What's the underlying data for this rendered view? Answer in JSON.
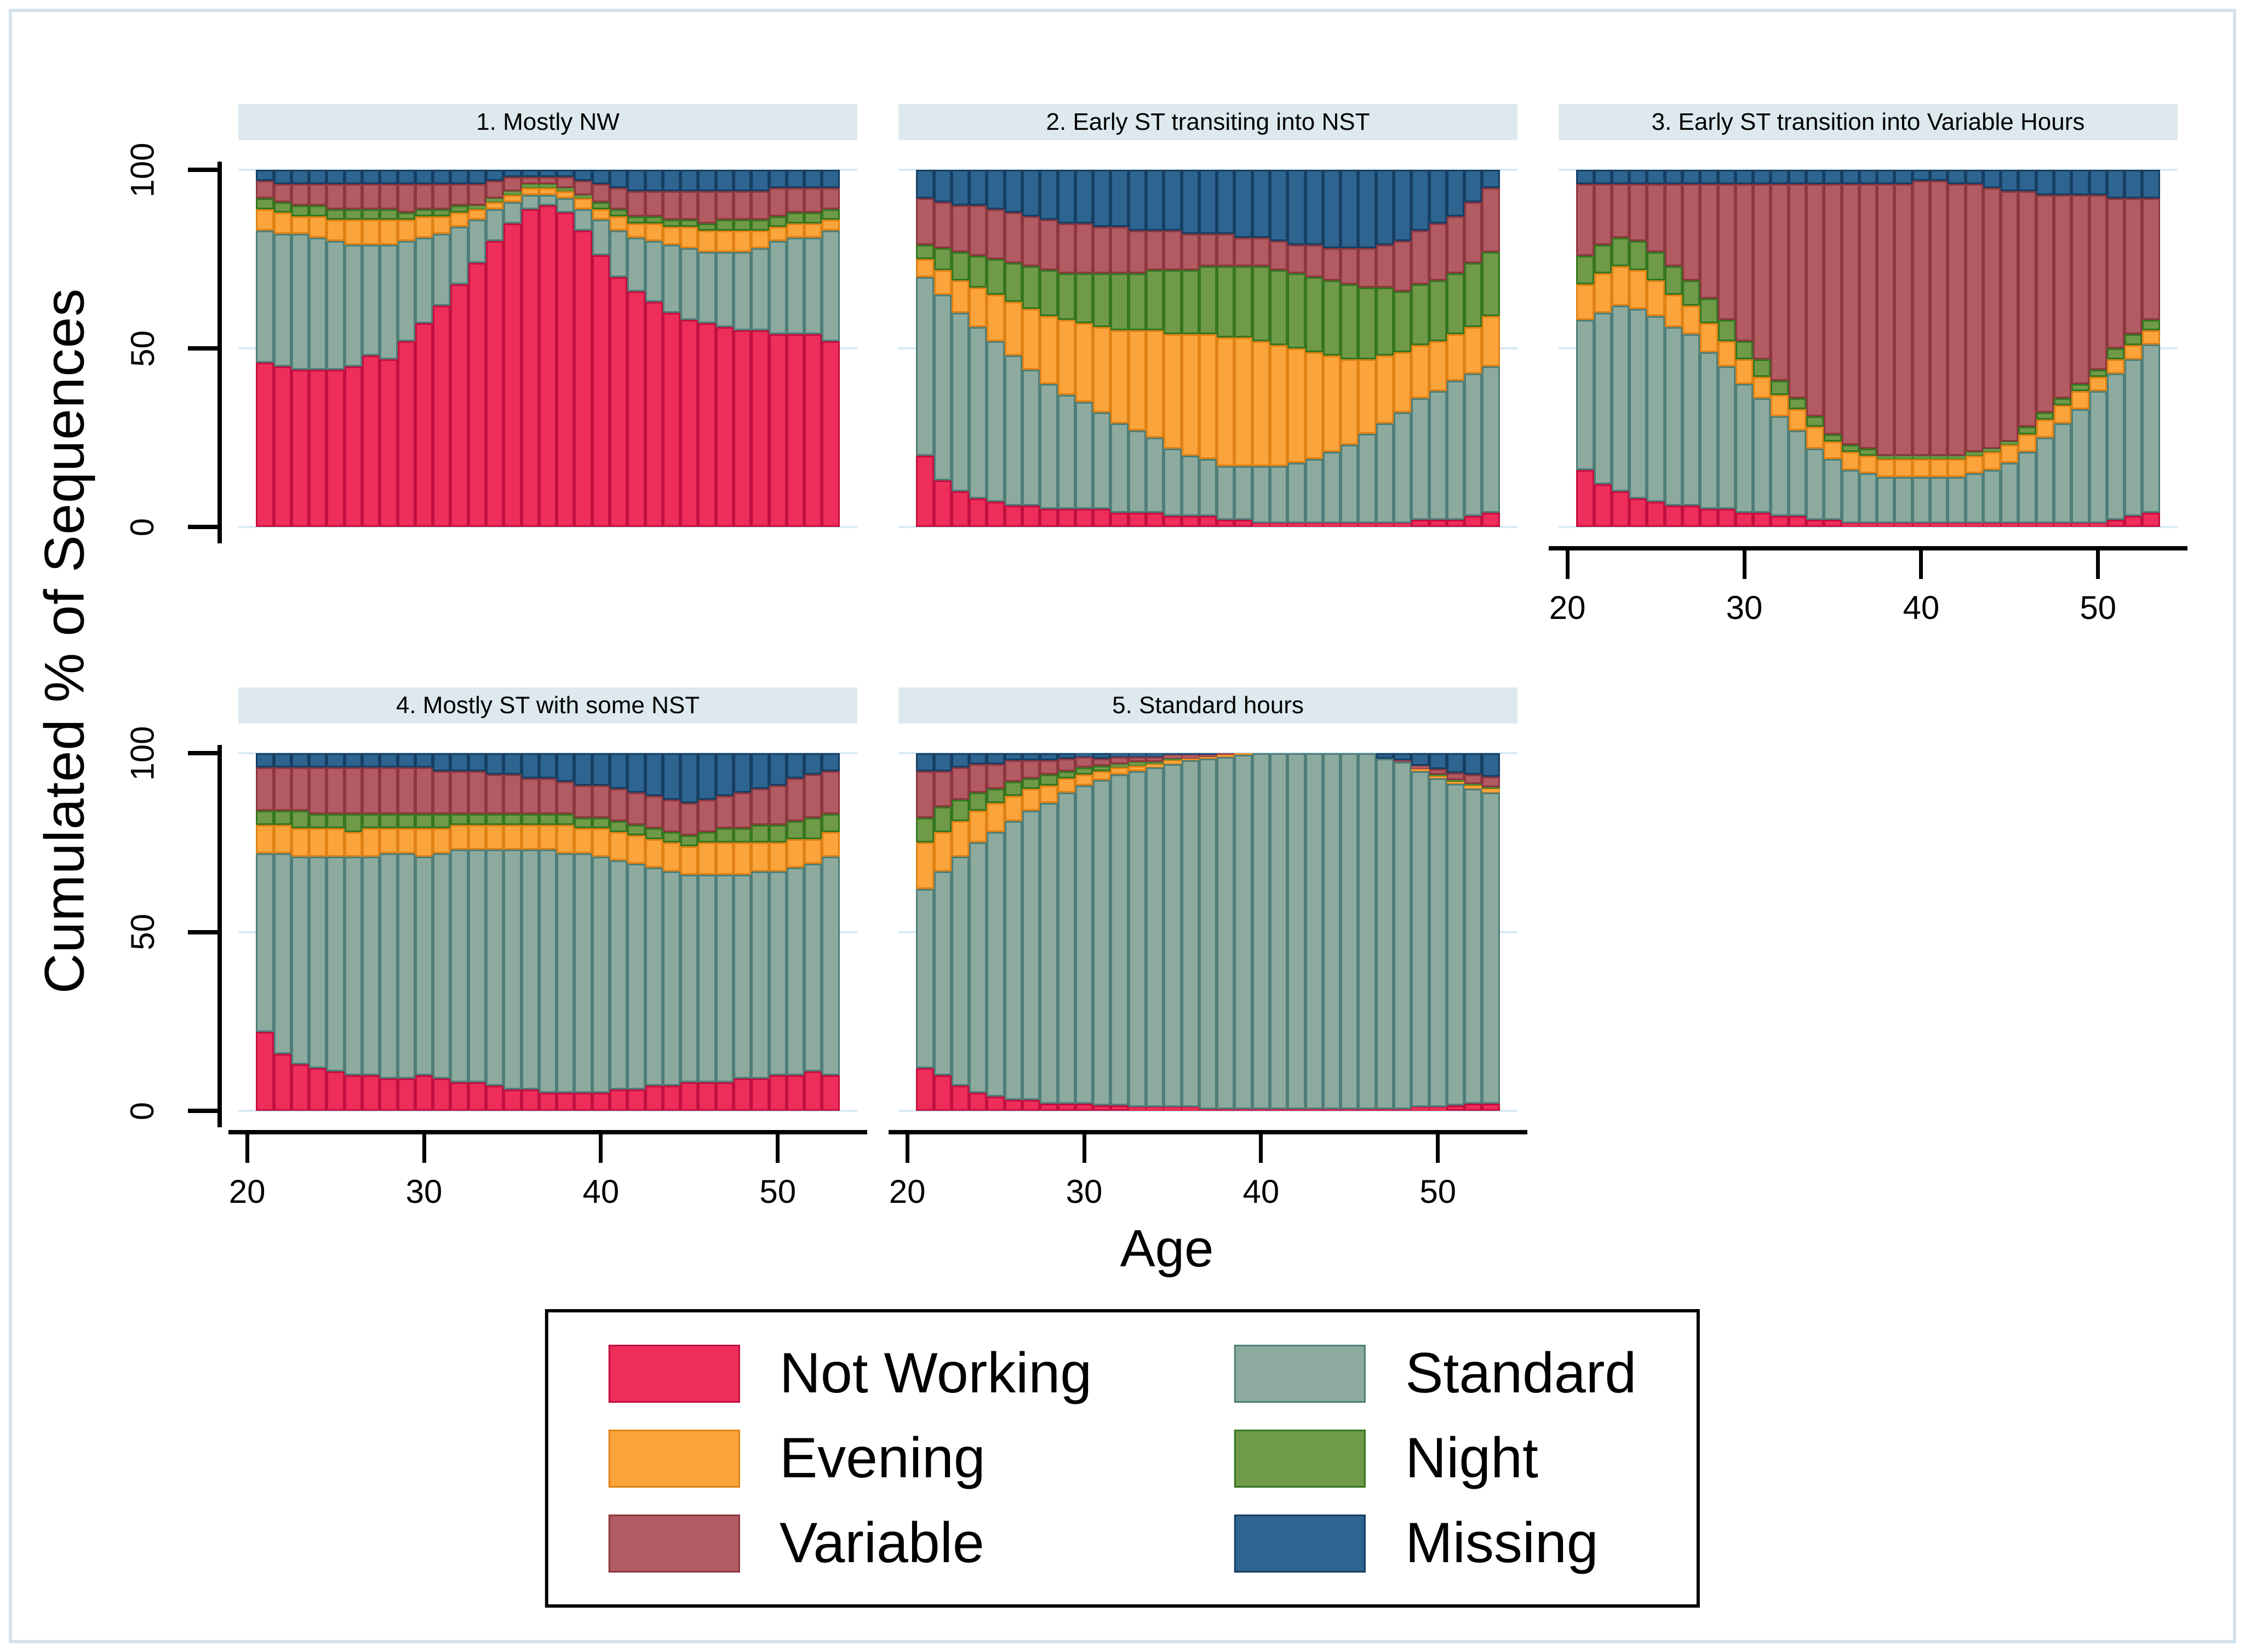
{
  "figure": {
    "background": "#ffffff",
    "frame_color": "#d3e3ee",
    "header_fill": "#dde9ef",
    "gridline_color": "#d9eaf3",
    "axis_color": "#000000",
    "legend_border_color": "#000000"
  },
  "chart_data": {
    "type": "bar",
    "stacked": true,
    "unit": "%",
    "ylabel": "Cumulated % of Sequences",
    "xlabel": "Age",
    "ylim": [
      0,
      100
    ],
    "yticks": [
      0,
      50,
      100
    ],
    "xticks": [
      20,
      30,
      40,
      50
    ],
    "xlim": [
      19.5,
      54.5
    ],
    "grid": true,
    "legend_position": "bottom",
    "ages": [
      21,
      22,
      23,
      24,
      25,
      26,
      27,
      28,
      29,
      30,
      31,
      32,
      33,
      34,
      35,
      36,
      37,
      38,
      39,
      40,
      41,
      42,
      43,
      44,
      45,
      46,
      47,
      48,
      49,
      50,
      51,
      52,
      53
    ],
    "stack_order": [
      "Not Working",
      "Standard",
      "Evening",
      "Night",
      "Variable",
      "Missing"
    ],
    "legend_order": [
      "Not Working",
      "Evening",
      "Variable",
      "Standard",
      "Night",
      "Missing"
    ],
    "series_colors": {
      "Not Working": {
        "fill": "#ee2d5a",
        "stroke": "#c11040"
      },
      "Standard": {
        "fill": "#8cab9e",
        "stroke": "#4f7e79"
      },
      "Evening": {
        "fill": "#fca43c",
        "stroke": "#e08214"
      },
      "Night": {
        "fill": "#6f9a48",
        "stroke": "#35761f"
      },
      "Variable": {
        "fill": "#b25b62",
        "stroke": "#8f3740"
      },
      "Missing": {
        "fill": "#2e6490",
        "stroke": "#163f63"
      }
    },
    "panels": [
      {
        "title": "1. Mostly NW",
        "values": {
          "Not Working": [
            46,
            45,
            44,
            44,
            44,
            45,
            48,
            47,
            52,
            57,
            62,
            68,
            74,
            80,
            85,
            89,
            90,
            88,
            83,
            76,
            70,
            66,
            63,
            60,
            58,
            57,
            56,
            55,
            55,
            54,
            54,
            54,
            52
          ],
          "Standard": [
            37,
            37,
            38,
            37,
            36,
            34,
            31,
            32,
            28,
            24,
            20,
            16,
            12,
            9,
            6,
            4,
            3,
            4,
            6,
            10,
            13,
            15,
            17,
            19,
            20,
            20,
            21,
            22,
            23,
            26,
            27,
            27,
            31
          ],
          "Evening": [
            6,
            6,
            5,
            6,
            6,
            7,
            7,
            7,
            6,
            6,
            5,
            4,
            3,
            2,
            2,
            2,
            2,
            2,
            3,
            3,
            4,
            4,
            5,
            5,
            6,
            6,
            6,
            6,
            5,
            4,
            4,
            4,
            3
          ],
          "Night": [
            3,
            3,
            3,
            3,
            3,
            3,
            3,
            3,
            2,
            2,
            2,
            2,
            1,
            1,
            1,
            1,
            1,
            1,
            1,
            2,
            2,
            2,
            2,
            2,
            2,
            2,
            3,
            3,
            3,
            3,
            3,
            3,
            3
          ],
          "Variable": [
            5,
            5,
            6,
            6,
            7,
            7,
            7,
            7,
            8,
            7,
            7,
            6,
            6,
            5,
            4,
            2,
            2,
            3,
            4,
            5,
            6,
            7,
            7,
            8,
            8,
            9,
            8,
            8,
            8,
            8,
            7,
            7,
            6
          ],
          "Missing": [
            3,
            4,
            4,
            4,
            4,
            4,
            4,
            4,
            4,
            4,
            4,
            4,
            4,
            3,
            2,
            2,
            2,
            2,
            3,
            4,
            5,
            6,
            6,
            6,
            6,
            6,
            6,
            6,
            6,
            5,
            5,
            5,
            5
          ]
        }
      },
      {
        "title": "2. Early ST transiting into NST",
        "values": {
          "Not Working": [
            20,
            13,
            10,
            8,
            7,
            6,
            6,
            5,
            5,
            5,
            5,
            4,
            4,
            4,
            3,
            3,
            3,
            2,
            2,
            1,
            1,
            1,
            1,
            1,
            1,
            1,
            1,
            1,
            2,
            2,
            2,
            3,
            4
          ],
          "Standard": [
            50,
            52,
            50,
            48,
            45,
            42,
            38,
            35,
            32,
            30,
            27,
            25,
            23,
            21,
            19,
            17,
            16,
            15,
            15,
            16,
            16,
            17,
            18,
            20,
            22,
            25,
            28,
            31,
            34,
            36,
            39,
            40,
            41
          ],
          "Evening": [
            5,
            7,
            9,
            11,
            13,
            15,
            17,
            19,
            21,
            22,
            24,
            26,
            28,
            30,
            32,
            34,
            35,
            36,
            36,
            35,
            34,
            32,
            30,
            27,
            24,
            21,
            19,
            17,
            15,
            14,
            13,
            13,
            14
          ],
          "Night": [
            4,
            6,
            8,
            9,
            10,
            11,
            12,
            13,
            13,
            14,
            15,
            16,
            16,
            17,
            18,
            18,
            19,
            20,
            20,
            21,
            21,
            21,
            21,
            21,
            21,
            20,
            19,
            17,
            17,
            17,
            17,
            18,
            18
          ],
          "Variable": [
            13,
            13,
            13,
            14,
            14,
            14,
            14,
            14,
            14,
            14,
            13,
            13,
            12,
            11,
            11,
            10,
            9,
            9,
            8,
            8,
            8,
            8,
            9,
            9,
            10,
            11,
            12,
            14,
            15,
            16,
            16,
            17,
            18
          ],
          "Missing": [
            8,
            9,
            10,
            10,
            11,
            12,
            13,
            14,
            15,
            15,
            16,
            16,
            17,
            17,
            17,
            18,
            18,
            18,
            19,
            19,
            20,
            21,
            21,
            22,
            22,
            22,
            21,
            20,
            17,
            15,
            13,
            9,
            5
          ]
        }
      },
      {
        "title": "3. Early ST transition into Variable Hours",
        "values": {
          "Not Working": [
            16,
            12,
            10,
            8,
            7,
            6,
            6,
            5,
            5,
            4,
            4,
            3,
            3,
            2,
            2,
            1,
            1,
            1,
            1,
            1,
            1,
            1,
            1,
            1,
            1,
            1,
            1,
            1,
            1,
            1,
            2,
            3,
            4
          ],
          "Standard": [
            42,
            48,
            52,
            53,
            52,
            50,
            48,
            44,
            40,
            36,
            32,
            28,
            24,
            20,
            17,
            15,
            14,
            13,
            13,
            13,
            13,
            13,
            14,
            15,
            17,
            20,
            24,
            28,
            32,
            37,
            41,
            44,
            47
          ],
          "Evening": [
            10,
            11,
            11,
            11,
            10,
            9,
            8,
            8,
            7,
            7,
            6,
            6,
            6,
            6,
            5,
            5,
            5,
            5,
            5,
            5,
            5,
            5,
            5,
            5,
            5,
            5,
            5,
            5,
            5,
            4,
            4,
            4,
            4
          ],
          "Night": [
            8,
            8,
            8,
            8,
            8,
            8,
            7,
            7,
            6,
            5,
            5,
            4,
            3,
            3,
            2,
            2,
            2,
            1,
            1,
            1,
            1,
            1,
            1,
            1,
            1,
            2,
            2,
            2,
            2,
            2,
            3,
            3,
            3
          ],
          "Variable": [
            20,
            17,
            15,
            16,
            19,
            23,
            27,
            32,
            38,
            44,
            49,
            55,
            60,
            65,
            70,
            73,
            74,
            76,
            76,
            77,
            77,
            76,
            75,
            73,
            70,
            66,
            61,
            57,
            53,
            49,
            42,
            38,
            34
          ],
          "Missing": [
            4,
            4,
            4,
            4,
            4,
            4,
            4,
            4,
            4,
            4,
            4,
            4,
            4,
            4,
            4,
            4,
            4,
            4,
            4,
            3,
            3,
            4,
            4,
            5,
            6,
            6,
            7,
            7,
            7,
            7,
            8,
            8,
            8
          ]
        }
      },
      {
        "title": "4. Mostly ST with some NST",
        "values": {
          "Not Working": [
            22,
            16,
            13,
            12,
            11,
            10,
            10,
            9,
            9,
            10,
            9,
            8,
            8,
            7,
            6,
            6,
            5,
            5,
            5,
            5,
            6,
            6,
            7,
            7,
            8,
            8,
            8,
            9,
            9,
            10,
            10,
            11,
            10
          ],
          "Standard": [
            50,
            56,
            58,
            59,
            60,
            61,
            61,
            63,
            63,
            61,
            63,
            65,
            65,
            66,
            67,
            67,
            68,
            67,
            67,
            66,
            64,
            63,
            61,
            60,
            58,
            58,
            58,
            57,
            58,
            57,
            58,
            58,
            61
          ],
          "Evening": [
            8,
            8,
            8,
            8,
            8,
            7,
            8,
            7,
            7,
            8,
            7,
            7,
            7,
            7,
            7,
            7,
            7,
            8,
            7,
            8,
            8,
            8,
            8,
            8,
            8,
            9,
            9,
            9,
            8,
            8,
            8,
            7,
            7
          ],
          "Night": [
            4,
            4,
            5,
            4,
            4,
            5,
            4,
            4,
            4,
            4,
            4,
            3,
            3,
            3,
            3,
            3,
            3,
            3,
            3,
            3,
            3,
            3,
            3,
            3,
            3,
            3,
            4,
            4,
            5,
            5,
            5,
            6,
            5
          ],
          "Variable": [
            12,
            12,
            12,
            13,
            13,
            13,
            13,
            13,
            13,
            13,
            12,
            12,
            12,
            11,
            11,
            10,
            10,
            9,
            9,
            9,
            9,
            9,
            9,
            9,
            9,
            9,
            9,
            10,
            10,
            11,
            12,
            12,
            12
          ],
          "Missing": [
            4,
            4,
            4,
            4,
            4,
            4,
            4,
            4,
            4,
            4,
            5,
            5,
            5,
            6,
            6,
            7,
            7,
            8,
            9,
            9,
            10,
            11,
            12,
            13,
            14,
            13,
            12,
            11,
            10,
            9,
            7,
            6,
            5
          ]
        }
      },
      {
        "title": "5. Standard hours",
        "values": {
          "Not Working": [
            12,
            10,
            7,
            5,
            4,
            3,
            3,
            2,
            2,
            2,
            1.5,
            1.5,
            1,
            1,
            1,
            1,
            0.5,
            0.5,
            0.5,
            0.5,
            0.5,
            0.5,
            0.5,
            0.5,
            0.5,
            0.5,
            0.5,
            0.5,
            1,
            1,
            1.5,
            2,
            2
          ],
          "Standard": [
            50,
            57,
            64,
            70,
            74,
            78,
            81,
            84,
            87,
            89,
            91,
            92.5,
            94,
            95,
            96,
            97,
            98,
            98.5,
            99,
            99.5,
            99.5,
            99.5,
            99.5,
            99.5,
            99.5,
            99.5,
            98,
            97,
            94,
            92,
            90,
            88,
            87
          ],
          "Evening": [
            13,
            11,
            10,
            9,
            8,
            7,
            6,
            5,
            4,
            3,
            2.5,
            2,
            1.5,
            1,
            1,
            0.5,
            0.5,
            0.5,
            0.5,
            0,
            0,
            0,
            0,
            0,
            0,
            0,
            0,
            0,
            0.5,
            0.5,
            0.5,
            1,
            1
          ],
          "Night": [
            7,
            7,
            6,
            5,
            4,
            4,
            3,
            3,
            2,
            2,
            1.5,
            1,
            1,
            0.5,
            0.5,
            0,
            0,
            0,
            0,
            0,
            0,
            0,
            0,
            0,
            0,
            0,
            0,
            0,
            0,
            0.5,
            0.5,
            0.5,
            0.5
          ],
          "Variable": [
            13,
            10,
            9,
            8,
            7,
            6,
            5,
            4,
            3.5,
            3,
            2,
            2,
            1.5,
            1.5,
            1,
            1,
            0.5,
            0.5,
            0,
            0,
            0,
            0,
            0,
            0,
            0,
            0,
            0,
            0.5,
            1,
            1.5,
            2,
            2.5,
            3
          ],
          "Missing": [
            5,
            5,
            4,
            3,
            3,
            2,
            2,
            2,
            1.5,
            1,
            1.5,
            1,
            1,
            1,
            0.5,
            0.5,
            0.5,
            0,
            0,
            0,
            0,
            0,
            0,
            0,
            0,
            0,
            1.5,
            2,
            3.5,
            4.5,
            5.5,
            6,
            6.5
          ]
        }
      }
    ]
  }
}
